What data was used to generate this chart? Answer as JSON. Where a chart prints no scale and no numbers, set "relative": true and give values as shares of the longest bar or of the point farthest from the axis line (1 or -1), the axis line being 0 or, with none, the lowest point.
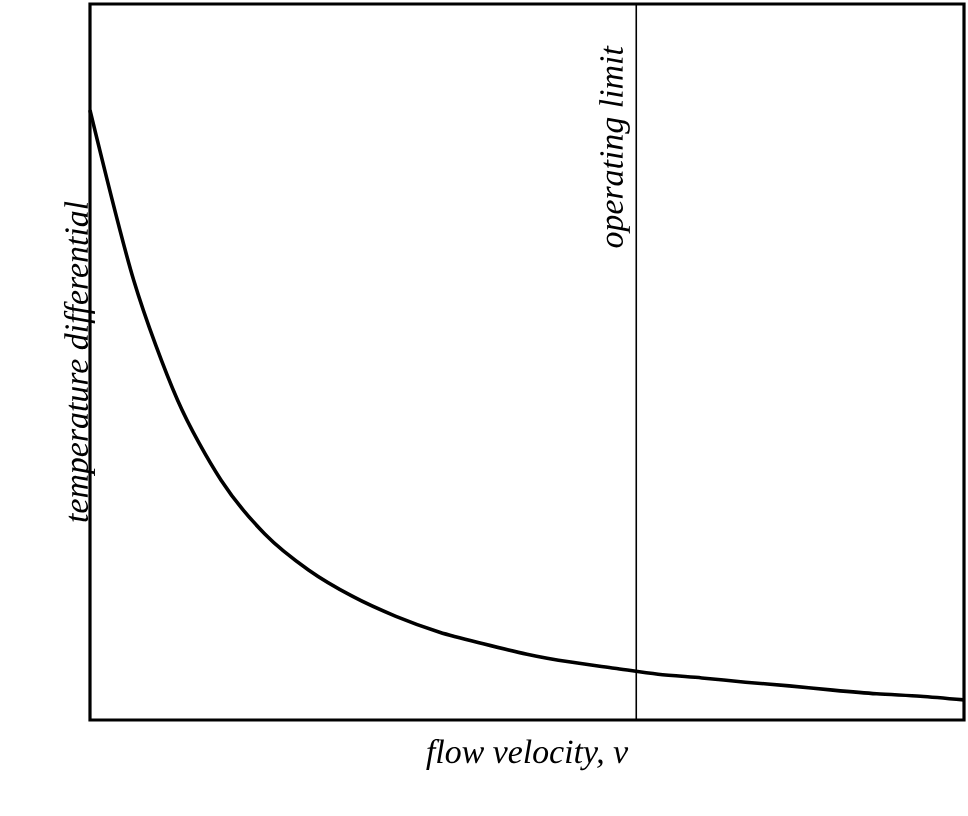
{
  "chart_data": {
    "type": "line",
    "relative": true,
    "xlabel": "flow velocity, *v*",
    "ylabel": "temperature differential",
    "categories": [
      null,
      null,
      null,
      null,
      null,
      null,
      null,
      null,
      null,
      null,
      null,
      null,
      null,
      null,
      null,
      null,
      null,
      null,
      null,
      null,
      null
    ],
    "series": [
      {
        "color": "#000000",
        "values": [
          1.0,
          0.721,
          0.525,
          0.393,
          0.305,
          0.246,
          0.203,
          0.17,
          0.144,
          0.125,
          0.108,
          0.095,
          0.085,
          0.075,
          0.069,
          0.062,
          0.056,
          0.049,
          0.043,
          0.039,
          0.033
        ]
      }
    ],
    "annotations": [
      "operating limit"
    ]
  }
}
